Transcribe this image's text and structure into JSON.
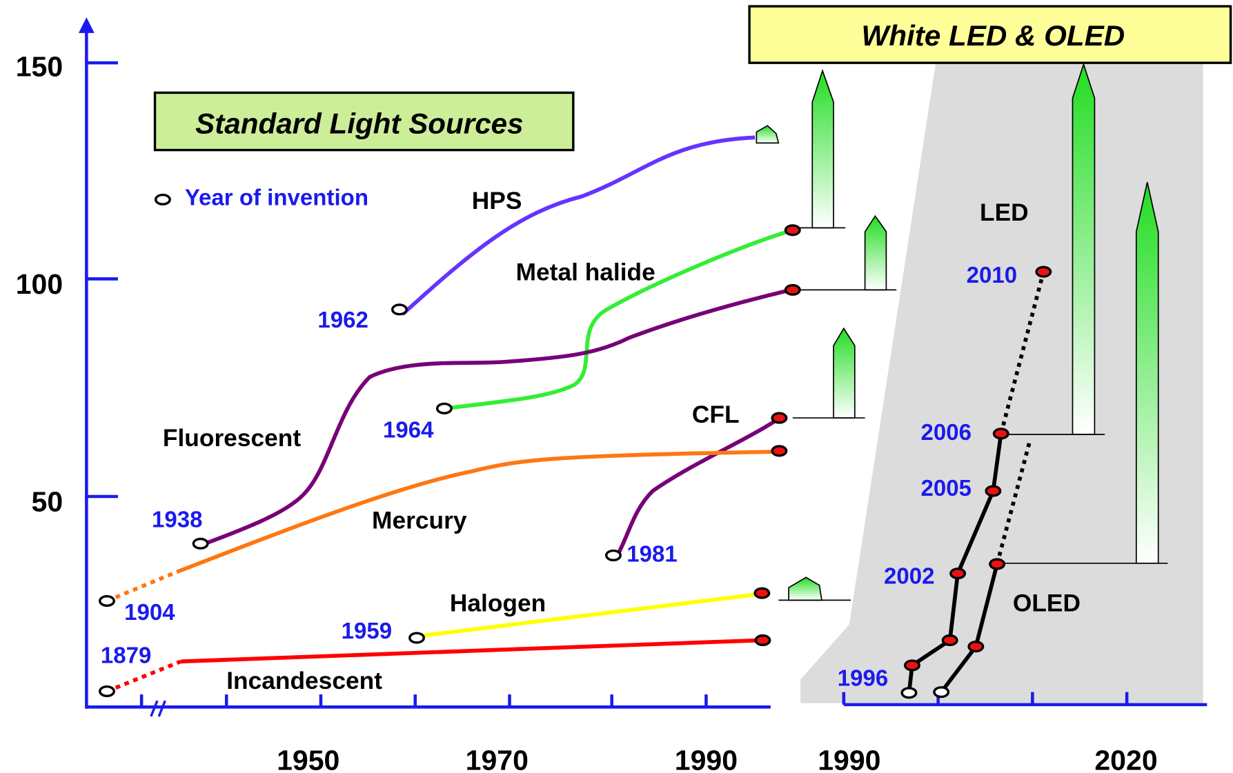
{
  "axes": {
    "y_ticks": [
      "150",
      "100",
      "50"
    ],
    "x_ticks_left": [
      "1950",
      "1970",
      "1990"
    ],
    "x_ticks_right": [
      "1990",
      "2020"
    ]
  },
  "boxes": {
    "standard": "Standard Light Sources",
    "white": "White LED & OLED"
  },
  "legend": "Year of invention",
  "sources": {
    "hps": "HPS",
    "metal_halide": "Metal halide",
    "fluorescent": "Fluorescent",
    "cfl": "CFL",
    "mercury": "Mercury",
    "halogen": "Halogen",
    "incandescent": "Incandescent",
    "led": "LED",
    "oled": "OLED"
  },
  "years": [
    "1962",
    "1964",
    "1938",
    "1981",
    "1904",
    "1959",
    "1879",
    "2010",
    "2006",
    "2005",
    "2002",
    "1996"
  ]
}
